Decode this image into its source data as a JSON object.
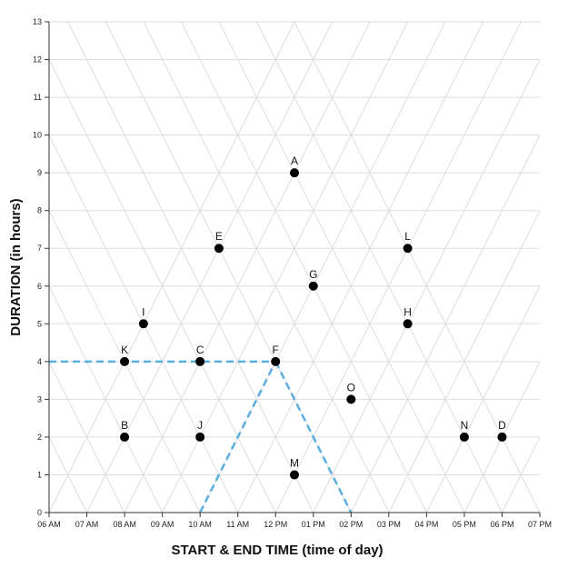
{
  "chart_data": {
    "type": "scatter",
    "title": "",
    "xlabel": "START & END TIME (time of day)",
    "ylabel": "DURATION (in hours)",
    "x_ticks": [
      "06 AM",
      "07 AM",
      "08 AM",
      "09 AM",
      "10 AM",
      "11 AM",
      "12 PM",
      "01 PM",
      "02 PM",
      "03 PM",
      "04 PM",
      "05 PM",
      "06 PM",
      "07 PM"
    ],
    "y_ticks": [
      "0",
      "1",
      "2",
      "3",
      "4",
      "5",
      "6",
      "7",
      "8",
      "9",
      "10",
      "11",
      "12",
      "13"
    ],
    "xlim": [
      6,
      19
    ],
    "ylim": [
      0,
      13
    ],
    "grid": "triangular",
    "x_unit": "hour of day (24h)",
    "points": [
      {
        "label": "A",
        "x": 12.5,
        "y": 9
      },
      {
        "label": "B",
        "x": 8,
        "y": 2
      },
      {
        "label": "C",
        "x": 10,
        "y": 4
      },
      {
        "label": "D",
        "x": 18,
        "y": 2
      },
      {
        "label": "E",
        "x": 10.5,
        "y": 7
      },
      {
        "label": "F",
        "x": 12,
        "y": 4
      },
      {
        "label": "G",
        "x": 13,
        "y": 6
      },
      {
        "label": "H",
        "x": 15.5,
        "y": 5
      },
      {
        "label": "I",
        "x": 8.5,
        "y": 5
      },
      {
        "label": "J",
        "x": 10,
        "y": 2
      },
      {
        "label": "K",
        "x": 8,
        "y": 4
      },
      {
        "label": "L",
        "x": 15.5,
        "y": 7
      },
      {
        "label": "M",
        "x": 12.5,
        "y": 1
      },
      {
        "label": "N",
        "x": 17,
        "y": 2
      },
      {
        "label": "O",
        "x": 14,
        "y": 3
      }
    ],
    "highlight": {
      "point": "F",
      "color": "#5aaee0"
    },
    "colors": {
      "point": "#000000",
      "grid": "#dddddd",
      "highlight": "#5aaee0"
    }
  }
}
